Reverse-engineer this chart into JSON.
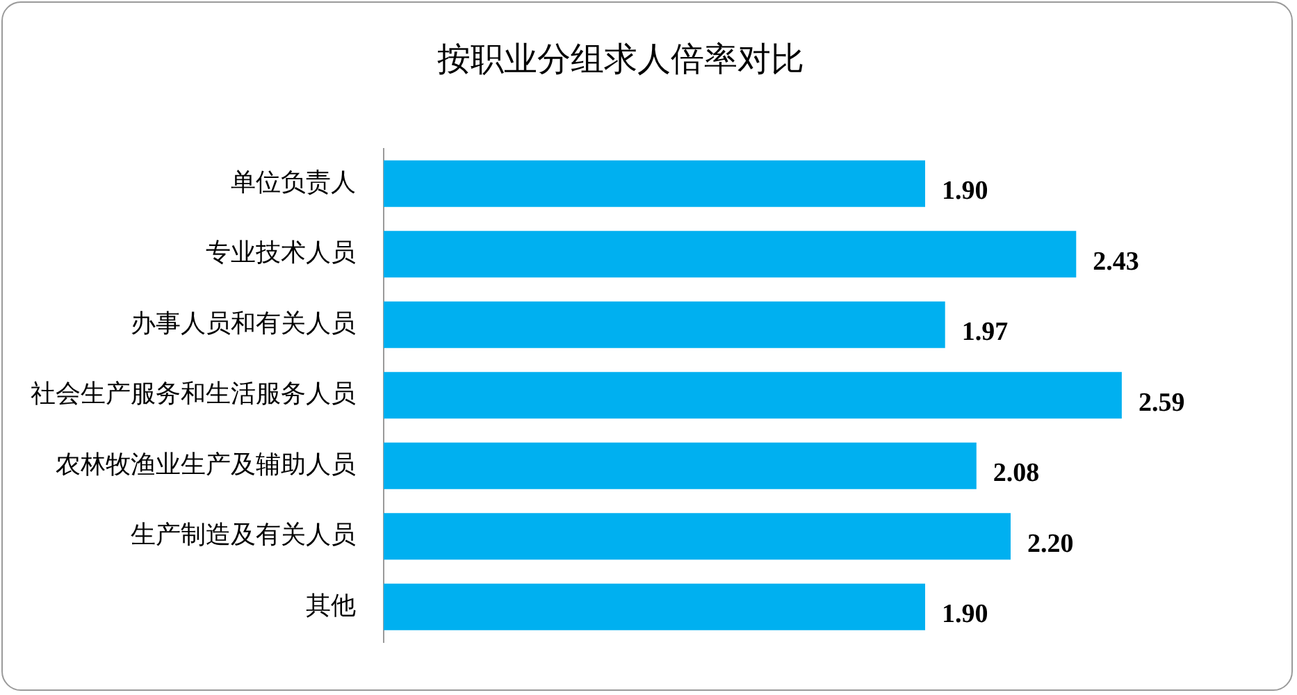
{
  "chart_data": {
    "type": "bar",
    "orientation": "horizontal",
    "title": "按职业分组求人倍率对比",
    "categories": [
      "单位负责人",
      "专业技术人员",
      "办事人员和有关人员",
      "社会生产服务和生活服务人员",
      "农林牧渔业生产及辅助人员",
      "生产制造及有关人员",
      "其他"
    ],
    "values": [
      1.9,
      2.43,
      1.97,
      2.59,
      2.08,
      2.2,
      1.9
    ],
    "value_labels": [
      "1.90",
      "2.43",
      "1.97",
      "2.59",
      "2.08",
      "2.20",
      "1.90"
    ],
    "color": "#00b0f0",
    "legend": false,
    "grid": false,
    "tick_labels": "y"
  }
}
